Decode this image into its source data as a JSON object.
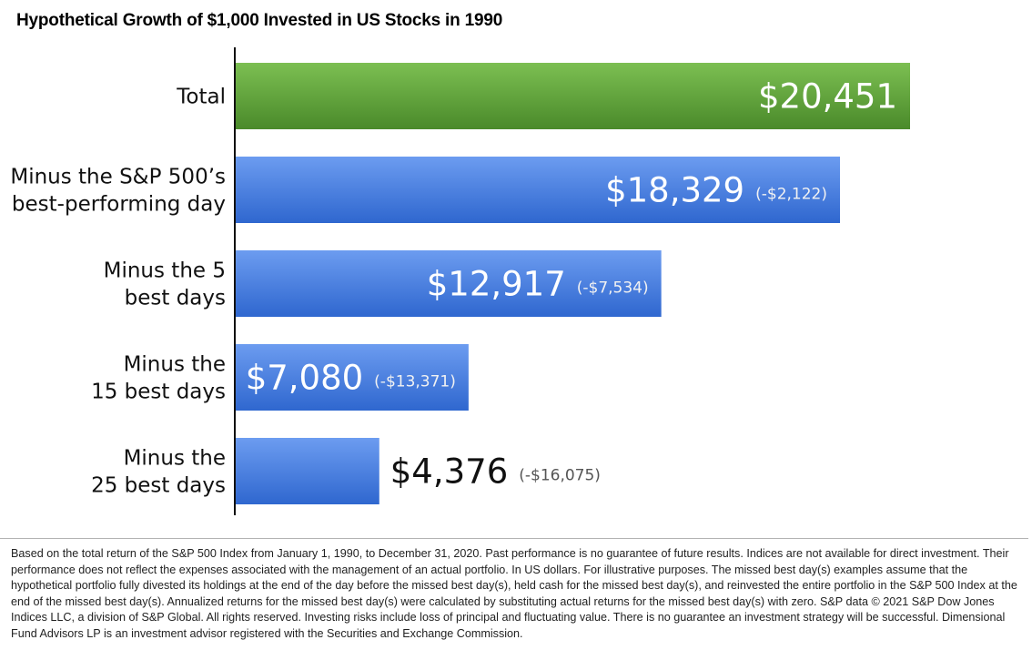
{
  "title": "Hypothetical Growth of $1,000 Invested in US Stocks in 1990",
  "chart_data": {
    "type": "bar",
    "orientation": "horizontal",
    "title": "Hypothetical Growth of $1,000 Invested in US Stocks in 1990",
    "xlim": [
      0,
      25000
    ],
    "categories": [
      [
        "Total"
      ],
      [
        "Minus the S&P 500’s",
        "best-performing day"
      ],
      [
        "Minus the 5",
        "best days"
      ],
      [
        "Minus the",
        "15 best days"
      ],
      [
        "Minus the",
        "25 best days"
      ]
    ],
    "values": [
      20451,
      18329,
      12917,
      7080,
      4376
    ],
    "labels": [
      "$20,451",
      "$18,329",
      "$12,917",
      "$7,080",
      "$4,376"
    ],
    "differences": [
      "",
      "(-$2,122)",
      "(-$7,534)",
      "(-$13,371)",
      "(-$16,075)"
    ],
    "colors": [
      "#5fa03a",
      "#3c78d8",
      "#3c78d8",
      "#3c78d8",
      "#3c78d8"
    ]
  },
  "footnote": "Based on the total return of the S&P 500 Index from January 1, 1990, to December 31, 2020. Past performance is no guarantee of future results. Indices are not available for direct investment. Their performance does not reflect the expenses associated with the management of an actual portfolio. In US dollars. For illustrative purposes. The missed best day(s) examples assume that the hypothetical portfolio fully divested its holdings at the end of the day before the missed best day(s), held cash for the missed best day(s), and reinvested the entire portfolio in the S&P 500 Index at the end of the missed best day(s). Annualized returns for the missed best day(s) were calculated by substituting actual returns for the missed best day(s) with zero. S&P data © 2021 S&P Dow Jones Indices LLC, a division of S&P Global. All rights reserved. Investing risks include loss of principal and fluctuating value. There is no guarantee an investment strategy will be successful. Dimensional Fund Advisors LP is an investment advisor registered with the Securities and Exchange Commission."
}
